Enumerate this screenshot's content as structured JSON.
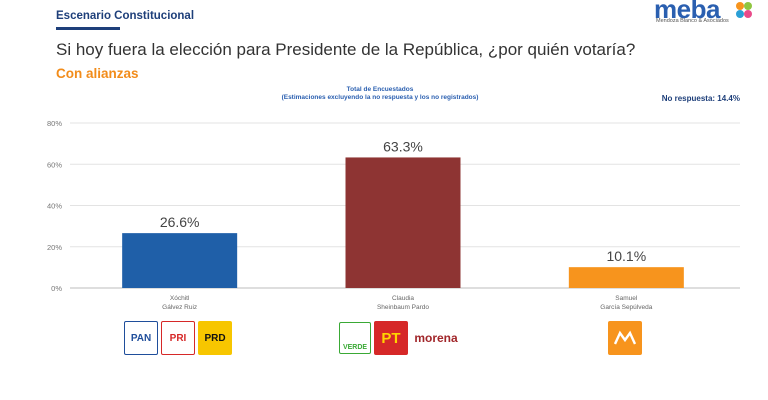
{
  "header": {
    "kicker": "Escenario Constitucional",
    "question": "Si hoy fuera la elección para Presidente de la República, ¿por quién votaría?",
    "subtitle": "Con alianzas"
  },
  "brand": {
    "name": "meba",
    "tagline": "Mendoza Blanco & Asociados"
  },
  "no_response": "No respuesta: 14.4%",
  "chart_data": {
    "type": "bar",
    "title": "Total de Encuestados",
    "subtitle": "(Estimaciones excluyendo la no respuesta y los no registrados)",
    "categories": [
      "Xóchitl Gálvez Ruiz",
      "Claudia Sheinbaum Pardo",
      "Samuel García Sepúlveda"
    ],
    "category_lines": [
      [
        "Xóchitl",
        "Gálvez Ruiz"
      ],
      [
        "Claudia",
        "Sheinbaum Pardo"
      ],
      [
        "Samuel",
        "García Sepúlveda"
      ]
    ],
    "values": [
      26.6,
      63.3,
      10.1
    ],
    "value_labels": [
      "26.6%",
      "63.3%",
      "10.1%"
    ],
    "colors": [
      "#1f5fa8",
      "#8e3433",
      "#f7941d"
    ],
    "ylim": [
      0,
      80
    ],
    "yticks": [
      "0%",
      "20%",
      "40%",
      "60%",
      "80%"
    ],
    "ytick_values": [
      0,
      20,
      40,
      60,
      80
    ],
    "grid": true
  },
  "parties": [
    {
      "candidate": "Xóchitl Gálvez Ruiz",
      "logos": [
        {
          "label": "PAN",
          "icon": "pan-logo-icon",
          "bg": "#ffffff",
          "fg": "#1f4e9b"
        },
        {
          "label": "PRI",
          "icon": "pri-logo-icon",
          "bg": "#ffffff",
          "fg": "#d62828"
        },
        {
          "label": "PRD",
          "icon": "prd-logo-icon",
          "bg": "#f7c600",
          "fg": "#111111"
        }
      ]
    },
    {
      "candidate": "Claudia Sheinbaum Pardo",
      "logos": [
        {
          "label": "VERDE",
          "icon": "verde-logo-icon",
          "bg": "#ffffff",
          "fg": "#3aa935"
        },
        {
          "label": "PT",
          "icon": "pt-logo-icon",
          "bg": "#d62828",
          "fg": "#ffd400"
        },
        {
          "label": "morena",
          "icon": "morena-logo-icon",
          "bg": "#ffffff",
          "fg": "#a1262a"
        }
      ]
    },
    {
      "candidate": "Samuel García Sepúlveda",
      "logos": [
        {
          "label": "",
          "icon": "movimiento-ciudadano-logo-icon",
          "bg": "#f7941d",
          "fg": "#ffffff"
        }
      ]
    }
  ]
}
